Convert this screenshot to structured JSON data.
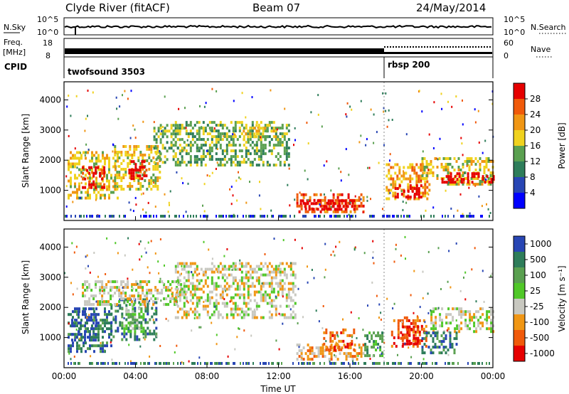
{
  "header": {
    "station": "Clyde River (fitACF)",
    "beam": "Beam 07",
    "date": "24/May/2014"
  },
  "panels": {
    "nsky_label": "N.Sky",
    "nsearch_label": "N.Search",
    "nsky_ticks": [
      "10^5",
      "10^0"
    ],
    "nsearch_ticks": [
      "10^5",
      "10^0"
    ],
    "freq_label": "Freq.",
    "freq_unit": "[MHz]",
    "freq_ticks": [
      "18",
      "8"
    ],
    "nave_label": "Nave",
    "nave_ticks": [
      "60",
      "0"
    ],
    "cpid_label": "CPID",
    "cpid_programs": [
      {
        "name": "twofsound 3503",
        "start": 0.0
      },
      {
        "name": "rbsp 200",
        "start": 18.0
      }
    ]
  },
  "chart_data": [
    {
      "type": "heatmap",
      "name": "power",
      "ylabel": "Slant Range [km]",
      "y_ticks": [
        "1000",
        "2000",
        "3000",
        "4000"
      ],
      "x_ticks": [
        "00:00",
        "04:00",
        "08:00",
        "12:00",
        "16:00",
        "20:00",
        "00:00"
      ],
      "colorbar": {
        "label": "Power [dB]",
        "ticks": [
          "4",
          "8",
          "12",
          "16",
          "20",
          "24",
          "28"
        ],
        "colors": [
          "#0000ff",
          "#2846b4",
          "#2e7d5a",
          "#5aa050",
          "#f0d21e",
          "#f09614",
          "#f05a0a",
          "#e60000"
        ]
      },
      "regions": [
        {
          "t0": 0.2,
          "t1": 3.0,
          "r0": 700,
          "r1": 2300,
          "level": 4
        },
        {
          "t0": 1.0,
          "t1": 2.3,
          "r0": 1100,
          "r1": 1800,
          "level": 7
        },
        {
          "t0": 2.8,
          "t1": 5.4,
          "r0": 1000,
          "r1": 2500,
          "level": 4
        },
        {
          "t0": 3.6,
          "t1": 4.6,
          "r0": 1400,
          "r1": 2000,
          "level": 7
        },
        {
          "t0": 5.0,
          "t1": 6.6,
          "r0": 1900,
          "r1": 3200,
          "level": 3
        },
        {
          "t0": 6.2,
          "t1": 12.6,
          "r0": 1800,
          "r1": 3300,
          "level": 3
        },
        {
          "t0": 10.0,
          "t1": 12.0,
          "r0": 2700,
          "r1": 3200,
          "level": 4
        },
        {
          "t0": 13.0,
          "t1": 16.8,
          "r0": 300,
          "r1": 900,
          "level": 6
        },
        {
          "t0": 13.2,
          "t1": 16.2,
          "r0": 400,
          "r1": 700,
          "level": 8
        },
        {
          "t0": 18.0,
          "t1": 20.5,
          "r0": 700,
          "r1": 1900,
          "level": 5
        },
        {
          "t0": 18.5,
          "t1": 20.0,
          "r0": 800,
          "r1": 1200,
          "level": 8
        },
        {
          "t0": 20.0,
          "t1": 24.0,
          "r0": 1200,
          "r1": 2100,
          "level": 4
        },
        {
          "t0": 21.0,
          "t1": 24.0,
          "r0": 1300,
          "r1": 1600,
          "level": 8
        }
      ]
    },
    {
      "type": "heatmap",
      "name": "velocity",
      "ylabel": "Slant Range [km]",
      "y_ticks": [
        "1000",
        "2000",
        "3000",
        "4000"
      ],
      "x_ticks": [
        "00:00",
        "04:00",
        "08:00",
        "12:00",
        "16:00",
        "20:00",
        "00:00"
      ],
      "xlabel": "Time UT",
      "colorbar": {
        "label": "Velocity [m s⁻¹]",
        "ticks": [
          "1000",
          "500",
          "100",
          "25",
          "-25",
          "-100",
          "-500",
          "-1000"
        ],
        "colors": [
          "#2846b4",
          "#2e7d5a",
          "#5aa050",
          "#50c828",
          "#c8c8c0",
          "#f09614",
          "#f05a0a",
          "#e60000"
        ]
      },
      "regions": [
        {
          "t0": 0.2,
          "t1": 2.6,
          "r0": 500,
          "r1": 2000,
          "level": 1
        },
        {
          "t0": 0.4,
          "t1": 1.8,
          "r0": 900,
          "r1": 2000,
          "level": 0
        },
        {
          "t0": 2.6,
          "t1": 5.2,
          "r0": 900,
          "r1": 2300,
          "level": 1
        },
        {
          "t0": 3.2,
          "t1": 4.4,
          "r0": 1200,
          "r1": 2000,
          "level": 3
        },
        {
          "t0": 1.0,
          "t1": 6.6,
          "r0": 2100,
          "r1": 2900,
          "level": 4
        },
        {
          "t0": 6.2,
          "t1": 13.0,
          "r0": 1700,
          "r1": 3500,
          "level": 4
        },
        {
          "t0": 13.0,
          "t1": 16.8,
          "r0": 300,
          "r1": 800,
          "level": 5
        },
        {
          "t0": 14.5,
          "t1": 16.2,
          "r0": 600,
          "r1": 1300,
          "level": 6
        },
        {
          "t0": 16.8,
          "t1": 17.8,
          "r0": 400,
          "r1": 1200,
          "level": 2
        },
        {
          "t0": 18.3,
          "t1": 20.3,
          "r0": 700,
          "r1": 1700,
          "level": 6
        },
        {
          "t0": 18.8,
          "t1": 19.8,
          "r0": 800,
          "r1": 1400,
          "level": 7
        },
        {
          "t0": 20.5,
          "t1": 24.0,
          "r0": 1200,
          "r1": 2000,
          "level": 4
        },
        {
          "t0": 20.0,
          "t1": 22.0,
          "r0": 500,
          "r1": 1200,
          "level": 1
        }
      ]
    }
  ]
}
